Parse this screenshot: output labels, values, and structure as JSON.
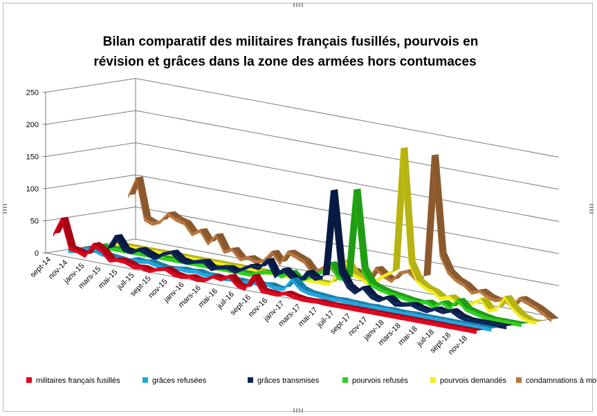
{
  "chart_data": {
    "type": "line",
    "title_lines": [
      "Bilan comparatif des militaires français fusillés, pourvois en",
      "révision et grâces dans la zone des armées hors contumaces"
    ],
    "ylim": [
      0,
      250
    ],
    "y_ticks": [
      0,
      50,
      100,
      150,
      200,
      250
    ],
    "grid": true,
    "legend_position": "bottom",
    "x_tick_labels": [
      "sept-14",
      "nov-14",
      "janv-15",
      "mars-15",
      "mai-15",
      "juil-15",
      "sept-15",
      "nov-15",
      "janv-16",
      "mars-16",
      "mai-16",
      "juil-16",
      "sept-16",
      "nov-16",
      "janv-17",
      "mars-17",
      "mai-17",
      "juil-17",
      "sept-17",
      "nov-17",
      "janv-18",
      "mars-18",
      "mai-18",
      "juil-18",
      "sept-18",
      "nov-18"
    ],
    "series": [
      {
        "name": "militaires français fusillés",
        "color": "#e3001b",
        "values": [
          28,
          55,
          12,
          10,
          5,
          25,
          18,
          5,
          8,
          7,
          2,
          3,
          0,
          5,
          8,
          2,
          0,
          3,
          0,
          2,
          10,
          8,
          15,
          3,
          0,
          22,
          2,
          1,
          0,
          5,
          2,
          0,
          0,
          1,
          0,
          0,
          0,
          0,
          0,
          0,
          0,
          0,
          0,
          0,
          0,
          0,
          0,
          0,
          0,
          0,
          0,
          0,
          0,
          0
        ]
      },
      {
        "name": "grâces refusées",
        "color": "#1ea7e1",
        "values": [
          0,
          2,
          8,
          10,
          5,
          3,
          2,
          0,
          5,
          4,
          6,
          3,
          1,
          2,
          4,
          3,
          5,
          2,
          3,
          1,
          2,
          3,
          2,
          4,
          3,
          5,
          2,
          3,
          20,
          8,
          4,
          3,
          2,
          1,
          2,
          1,
          1,
          0,
          1,
          0,
          1,
          0,
          0,
          1,
          0,
          0,
          0,
          0,
          0,
          0,
          0,
          0,
          0,
          0
        ]
      },
      {
        "name": "grâces transmises",
        "color": "#0b2358",
        "values": [
          0,
          0,
          0,
          5,
          28,
          10,
          8,
          15,
          10,
          5,
          15,
          20,
          10,
          8,
          12,
          15,
          5,
          10,
          12,
          8,
          15,
          22,
          20,
          35,
          12,
          25,
          15,
          10,
          28,
          20,
          25,
          160,
          40,
          18,
          10,
          20,
          8,
          5,
          12,
          3,
          5,
          8,
          4,
          2,
          8,
          5,
          10,
          3,
          0,
          0,
          0,
          0,
          0,
          0
        ]
      },
      {
        "name": "pourvois refusés",
        "color": "#2bd11c",
        "values": [
          0,
          0,
          0,
          0,
          0,
          0,
          0,
          0,
          0,
          0,
          0,
          0,
          0,
          0,
          0,
          0,
          0,
          0,
          0,
          0,
          5,
          8,
          10,
          6,
          15,
          4,
          10,
          18,
          25,
          40,
          20,
          20,
          160,
          40,
          20,
          15,
          12,
          10,
          8,
          6,
          5,
          8,
          3,
          12,
          5,
          20,
          8,
          5,
          2,
          0,
          0,
          0,
          0,
          0
        ]
      },
      {
        "name": "pourvois demandés",
        "color": "#f2ee1b",
        "values": [
          0,
          0,
          0,
          0,
          0,
          0,
          0,
          0,
          0,
          0,
          0,
          0,
          0,
          0,
          0,
          0,
          0,
          0,
          0,
          0,
          0,
          0,
          0,
          0,
          0,
          0,
          0,
          0,
          15,
          40,
          22,
          18,
          12,
          20,
          30,
          38,
          230,
          55,
          30,
          22,
          18,
          10,
          15,
          8,
          5,
          12,
          20,
          5,
          10,
          30,
          15,
          5,
          0,
          0
        ]
      },
      {
        "name": "condamnations à mort",
        "color": "#b9763d",
        "values": [
          70,
          100,
          40,
          35,
          40,
          55,
          48,
          45,
          30,
          38,
          20,
          35,
          12,
          18,
          5,
          10,
          5,
          10,
          25,
          10,
          30,
          25,
          20,
          5,
          12,
          22,
          10,
          5,
          20,
          15,
          10,
          30,
          20,
          15,
          30,
          35,
          25,
          30,
          220,
          70,
          45,
          35,
          30,
          20,
          25,
          18,
          15,
          20,
          10,
          25,
          20,
          15,
          8,
          0
        ]
      }
    ]
  }
}
